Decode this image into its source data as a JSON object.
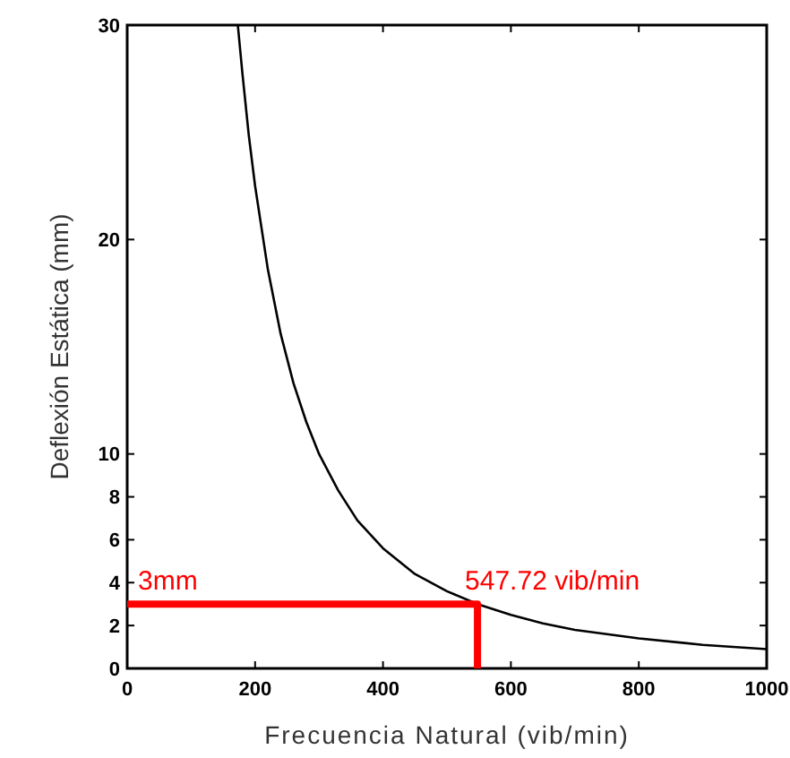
{
  "chart_data": {
    "type": "line",
    "xlabel": "Frecuencia Natural (vib/min)",
    "ylabel": "Deflexión Estática (mm)",
    "xlim": [
      0,
      1000
    ],
    "xticks": [
      0,
      200,
      400,
      600,
      800,
      1000
    ],
    "ylim": [
      0,
      30
    ],
    "yticks": [
      0,
      2,
      4,
      6,
      8,
      10,
      20,
      30
    ],
    "grid": false,
    "series": [
      {
        "color": "#000000",
        "x": [
          173,
          180,
          190,
          200,
          220,
          240,
          260,
          280,
          300,
          330,
          360,
          400,
          450,
          500,
          547.72,
          600,
          650,
          700,
          800,
          900,
          1000
        ],
        "values": [
          30,
          27.8,
          24.9,
          22.5,
          18.6,
          15.6,
          13.3,
          11.5,
          10,
          8.3,
          6.9,
          5.6,
          4.4,
          3.6,
          3,
          2.5,
          2.1,
          1.8,
          1.4,
          1.1,
          0.9
        ]
      },
      {
        "color": "#ff0000",
        "x": [
          0,
          547.72,
          547.72
        ],
        "values": [
          3,
          3,
          0
        ]
      }
    ],
    "annotations": [
      {
        "text": "3mm",
        "x": 0,
        "y": 3
      },
      {
        "text": "547.72 vib/min",
        "x": 547.72,
        "y": 3
      }
    ]
  }
}
